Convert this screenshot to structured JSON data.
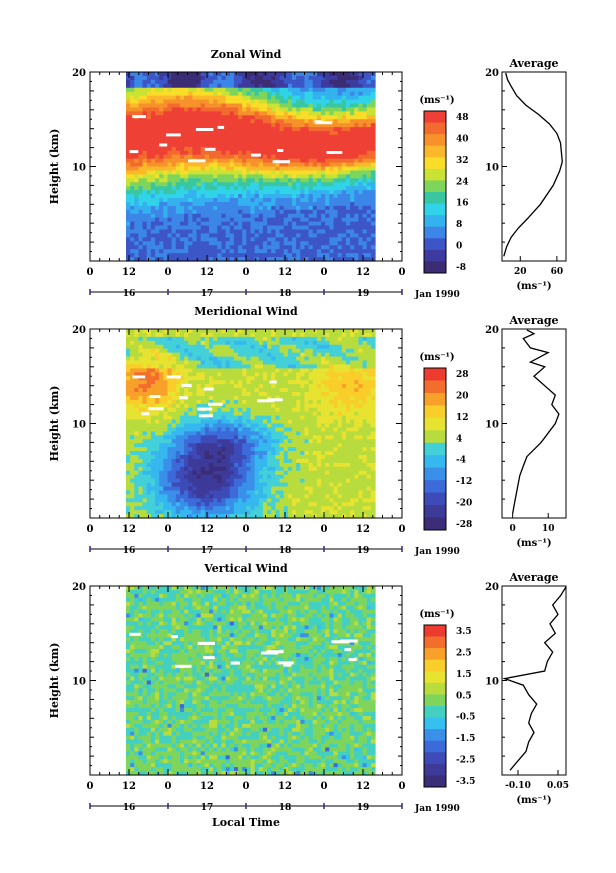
{
  "chart_data": [
    {
      "type": "heatmap",
      "title": "Zonal Wind",
      "ylabel": "Height (km)",
      "ylim": [
        0,
        20
      ],
      "y_ticks": [
        "10",
        "20"
      ],
      "x_ticks": [
        "0",
        "12",
        "0",
        "12",
        "0",
        "12",
        "0",
        "12",
        "0"
      ],
      "day_ticks": [
        "16",
        "17",
        "18",
        "19"
      ],
      "month_label": "Jan 1990",
      "colorbar_unit": "(ms⁻¹)",
      "colorbar_ticks": [
        "48",
        "40",
        "32",
        "24",
        "16",
        "8",
        "0",
        "-8"
      ],
      "colorbar_colors": [
        "#ef4036",
        "#f26a2e",
        "#f7912b",
        "#fbb82a",
        "#f9dd29",
        "#c9e234",
        "#7fd55c",
        "#39c7a2",
        "#31d3e8",
        "#34b1ef",
        "#3b86e6",
        "#3c56c8",
        "#3d3aa0",
        "#3b2c74"
      ],
      "average": {
        "title": "Average",
        "x_ticks": [
          "20",
          "60"
        ],
        "xlabel": "(ms⁻¹)",
        "xlim": [
          0,
          70
        ],
        "x": [
          2,
          5,
          10,
          18,
          28,
          42,
          56,
          63,
          66,
          65,
          64,
          60,
          52,
          40,
          26,
          16,
          10,
          6,
          4
        ],
        "y": [
          0.5,
          1.5,
          2.5,
          3.5,
          4.5,
          6,
          8,
          9.5,
          10.5,
          11.5,
          12.5,
          13.5,
          14.5,
          15.5,
          16.5,
          17.5,
          18.5,
          19.2,
          19.9
        ]
      }
    },
    {
      "type": "heatmap",
      "title": "Meridional Wind",
      "ylabel": "Height (km)",
      "ylim": [
        0,
        20
      ],
      "y_ticks": [
        "10",
        "20"
      ],
      "x_ticks": [
        "0",
        "12",
        "0",
        "12",
        "0",
        "12",
        "0",
        "12",
        "0"
      ],
      "day_ticks": [
        "16",
        "17",
        "18",
        "19"
      ],
      "month_label": "Jan 1990",
      "colorbar_unit": "(ms⁻¹)",
      "colorbar_ticks": [
        "28",
        "20",
        "12",
        "4",
        "-4",
        "-12",
        "-20",
        "-28"
      ],
      "colorbar_colors": [
        "#ee3b30",
        "#f36d2d",
        "#f7a12b",
        "#f9cd2a",
        "#e7e330",
        "#b8dc3d",
        "#44d0d8",
        "#36b7ef",
        "#3a90e8",
        "#3c6ad8",
        "#3d4ab8",
        "#3d3a98",
        "#3b2d78"
      ],
      "average": {
        "title": "Average",
        "x_ticks": [
          "0",
          "10"
        ],
        "xlabel": "(ms⁻¹)",
        "xlim": [
          -3,
          15
        ],
        "x": [
          0,
          0.5,
          1,
          1.5,
          2,
          3,
          4,
          8,
          12,
          13,
          11,
          12,
          9,
          6,
          9,
          5,
          10,
          5,
          3,
          6,
          4
        ],
        "y": [
          0.5,
          1.5,
          2.5,
          3.5,
          4.5,
          5.5,
          6.5,
          8,
          10,
          11,
          12,
          13,
          14,
          15,
          16,
          16.5,
          17.5,
          18,
          19,
          19.5,
          19.9
        ]
      }
    },
    {
      "type": "heatmap",
      "title": "Vertical Wind",
      "ylabel": "Height (km)",
      "ylim": [
        0,
        20
      ],
      "y_ticks": [
        "10",
        "20"
      ],
      "x_ticks": [
        "0",
        "12",
        "0",
        "12",
        "0",
        "12",
        "0",
        "12",
        "0"
      ],
      "day_ticks": [
        "16",
        "17",
        "18",
        "19"
      ],
      "month_label": "Jan 1990",
      "xlabel": "Local Time",
      "colorbar_unit": "(ms⁻¹)",
      "colorbar_ticks": [
        "3.5",
        "2.5",
        "1.5",
        "0.5",
        "-0.5",
        "-1.5",
        "-2.5",
        "-3.5"
      ],
      "colorbar_colors": [
        "#ee3b30",
        "#f36d2d",
        "#f7a12b",
        "#f9cd2a",
        "#e7e330",
        "#b8dc3d",
        "#7fd55c",
        "#44d0c0",
        "#36c0ef",
        "#3a90e8",
        "#3c6ad8",
        "#3d4ab8",
        "#3d3a98",
        "#3b2d78"
      ],
      "average": {
        "title": "Average",
        "x_ticks": [
          "-0.10",
          "0.05"
        ],
        "xlabel": "(ms⁻¹)",
        "xlim": [
          -0.16,
          0.08
        ],
        "x": [
          -0.13,
          -0.1,
          -0.07,
          -0.06,
          -0.04,
          -0.06,
          -0.05,
          -0.03,
          -0.06,
          -0.08,
          -0.15,
          0.0,
          0.01,
          0.03,
          0.0,
          0.04,
          0.02,
          0.05,
          0.03,
          0.06,
          0.08
        ],
        "y": [
          0.5,
          1.5,
          2.5,
          3.5,
          4.5,
          5.5,
          6.5,
          7.5,
          8.5,
          9.5,
          10.2,
          11,
          12,
          13,
          14,
          15,
          16,
          17,
          18,
          19,
          19.9
        ]
      }
    }
  ]
}
